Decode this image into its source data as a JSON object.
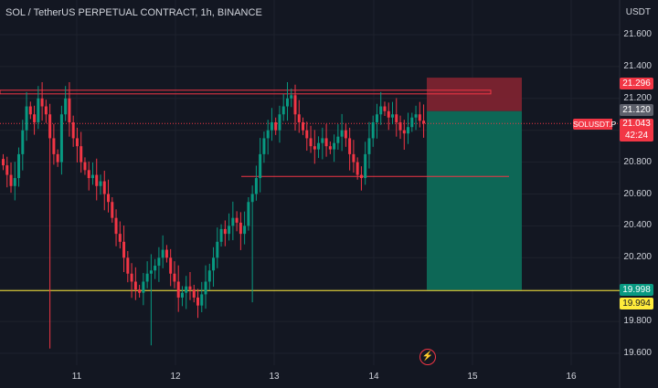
{
  "header": {
    "title": "SOL / TetherUS PERPETUAL CONTRACT, 1h, BINANCE",
    "currency": "USDT"
  },
  "price_axis": {
    "ticks": [
      "21.600",
      "21.400",
      "21.200",
      "21.000",
      "20.800",
      "20.600",
      "20.400",
      "20.200",
      "20.000",
      "19.800",
      "19.600"
    ]
  },
  "time_axis": {
    "ticks": [
      "11",
      "12",
      "13",
      "14",
      "15",
      "16"
    ]
  },
  "price_tags": {
    "stop": "21.296",
    "entry": "21.120",
    "symbol": "SOLUSDT.P",
    "last": "21.043",
    "countdown": "42:24",
    "target": "19.998",
    "horizontal": "19.994"
  },
  "colors": {
    "background": "#131722",
    "up": "#089981",
    "down": "#f23645",
    "stop_zone": "#7c2330",
    "target_zone": "#0d6b5a",
    "yellow_line": "#ffeb3b"
  },
  "chart_data": {
    "type": "candlestick",
    "title": "SOL / TetherUS PERPETUAL CONTRACT, 1h, BINANCE",
    "ylabel": "USDT",
    "ylim": [
      19.55,
      21.72
    ],
    "x_ticks": [
      "11",
      "12",
      "13",
      "14",
      "15",
      "16"
    ],
    "horizontal_lines": [
      21.24,
      21.22,
      20.71,
      19.994
    ],
    "position": {
      "side": "short",
      "entry": 21.12,
      "stop": 21.296,
      "target": 19.998
    },
    "closes": [
      20.78,
      20.72,
      20.65,
      20.7,
      20.85,
      21.0,
      21.15,
      21.1,
      21.05,
      21.2,
      21.15,
      21.1,
      20.95,
      20.85,
      20.8,
      21.1,
      21.2,
      21.05,
      20.95,
      20.9,
      20.8,
      20.75,
      20.7,
      20.72,
      20.65,
      20.68,
      20.6,
      20.55,
      20.45,
      20.35,
      20.3,
      20.2,
      20.1,
      20.05,
      20.0,
      19.98,
      20.05,
      20.1,
      20.12,
      20.15,
      20.2,
      20.25,
      20.2,
      20.1,
      20.05,
      19.95,
      19.98,
      20.02,
      20.0,
      19.95,
      19.9,
      19.97,
      20.05,
      20.12,
      20.2,
      20.3,
      20.38,
      20.35,
      20.4,
      20.45,
      20.42,
      20.35,
      20.4,
      20.55,
      20.6,
      20.7,
      20.85,
      20.95,
      21.0,
      21.05,
      21.0,
      21.1,
      21.15,
      21.2,
      21.22,
      21.1,
      21.05,
      21.0,
      20.95,
      20.9,
      20.88,
      20.92,
      20.95,
      20.9,
      20.88,
      20.92,
      20.96,
      21.0,
      20.95,
      20.85,
      20.8,
      20.72,
      20.7,
      20.85,
      20.95,
      21.05,
      21.1,
      21.15,
      21.12,
      21.08,
      21.1,
      21.05,
      21.0,
      20.98,
      21.02,
      21.08,
      21.1,
      21.06,
      21.043
    ]
  }
}
